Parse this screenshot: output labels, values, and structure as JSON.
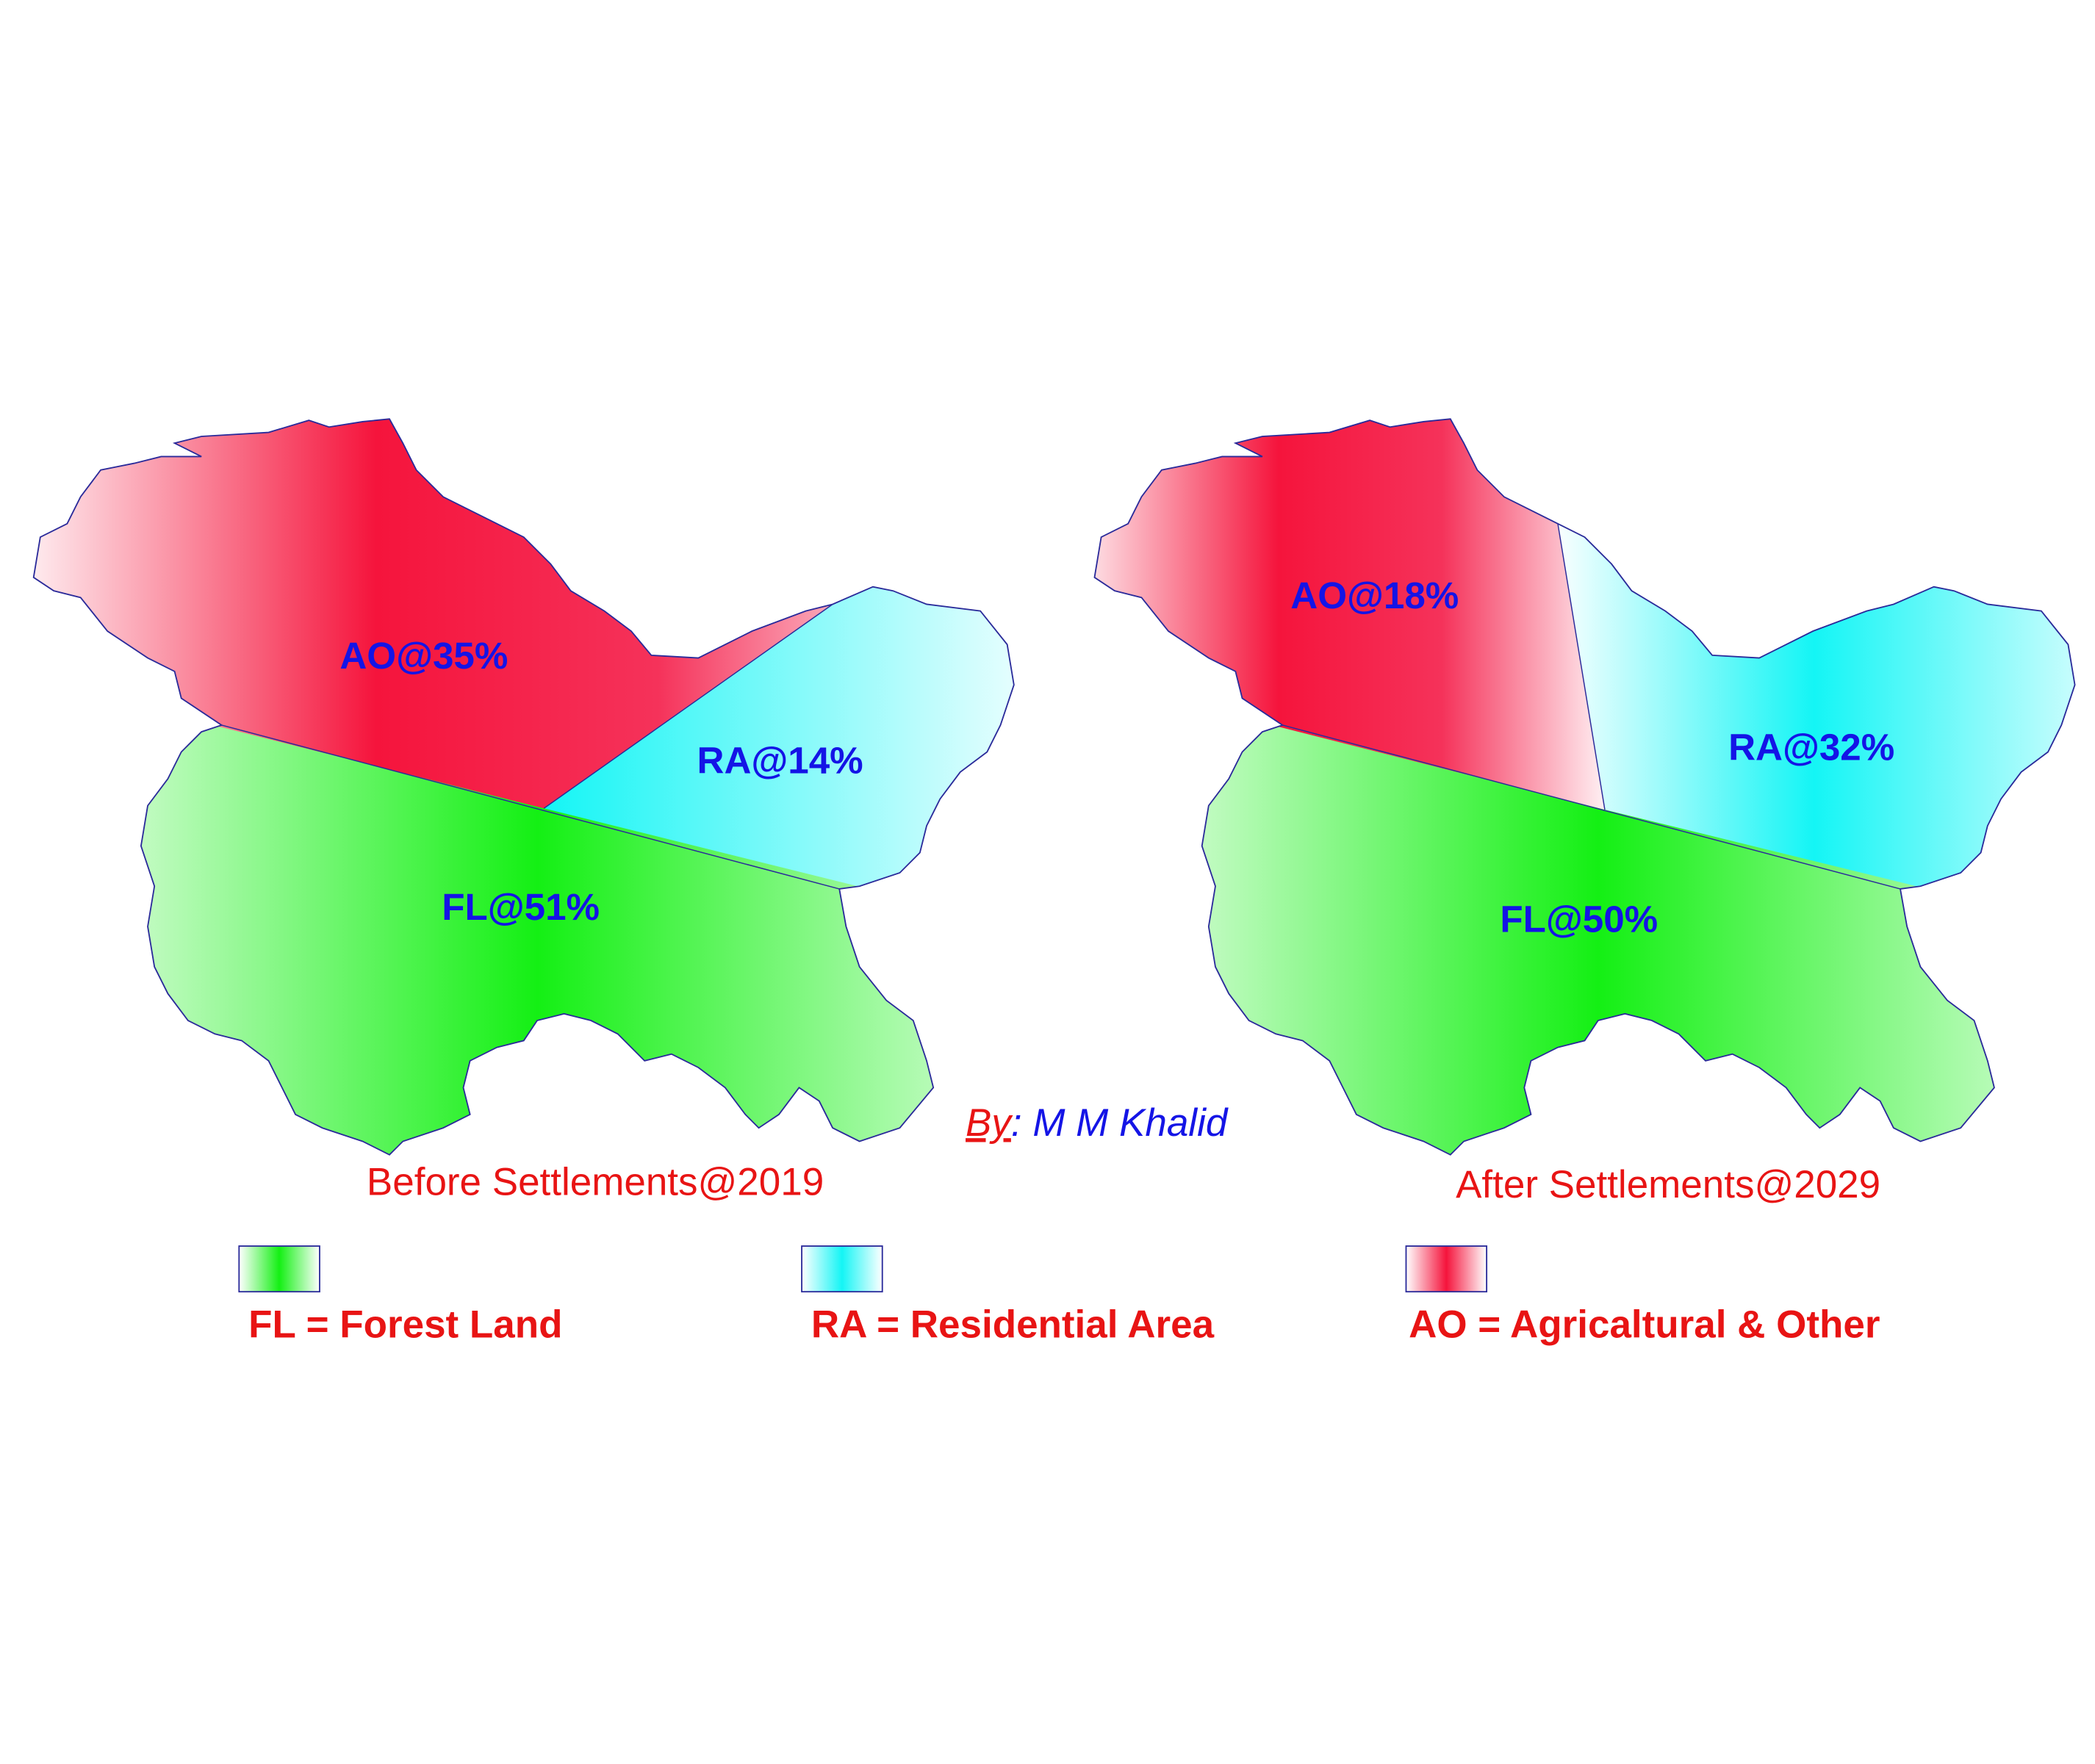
{
  "maps": [
    {
      "caption": "Before Settlements@2019",
      "regions": [
        {
          "code": "AO",
          "label": "AO@35%",
          "percent": 35
        },
        {
          "code": "RA",
          "label": "RA@14%",
          "percent": 14
        },
        {
          "code": "FL",
          "label": "FL@51%",
          "percent": 51
        }
      ]
    },
    {
      "caption": "After Settlements@2029",
      "regions": [
        {
          "code": "AO",
          "label": "AO@18%",
          "percent": 18
        },
        {
          "code": "RA",
          "label": "RA@32%",
          "percent": 32
        },
        {
          "code": "FL",
          "label": "FL@50%",
          "percent": 50
        }
      ]
    }
  ],
  "author": {
    "prefix": "By",
    "separator": ":",
    "name": " M M Khalid"
  },
  "legend": [
    {
      "code": "FL",
      "text": "FL = Forest Land",
      "color": "#14f014"
    },
    {
      "code": "RA",
      "text": "RA = Residential Area",
      "color": "#14f5f5"
    },
    {
      "code": "AO",
      "text": "AO = Agricaltural & Other",
      "color": "#f5143c"
    }
  ],
  "colors": {
    "label": "#1414e6",
    "title": "#e81414",
    "border": "#2a2a9a"
  }
}
